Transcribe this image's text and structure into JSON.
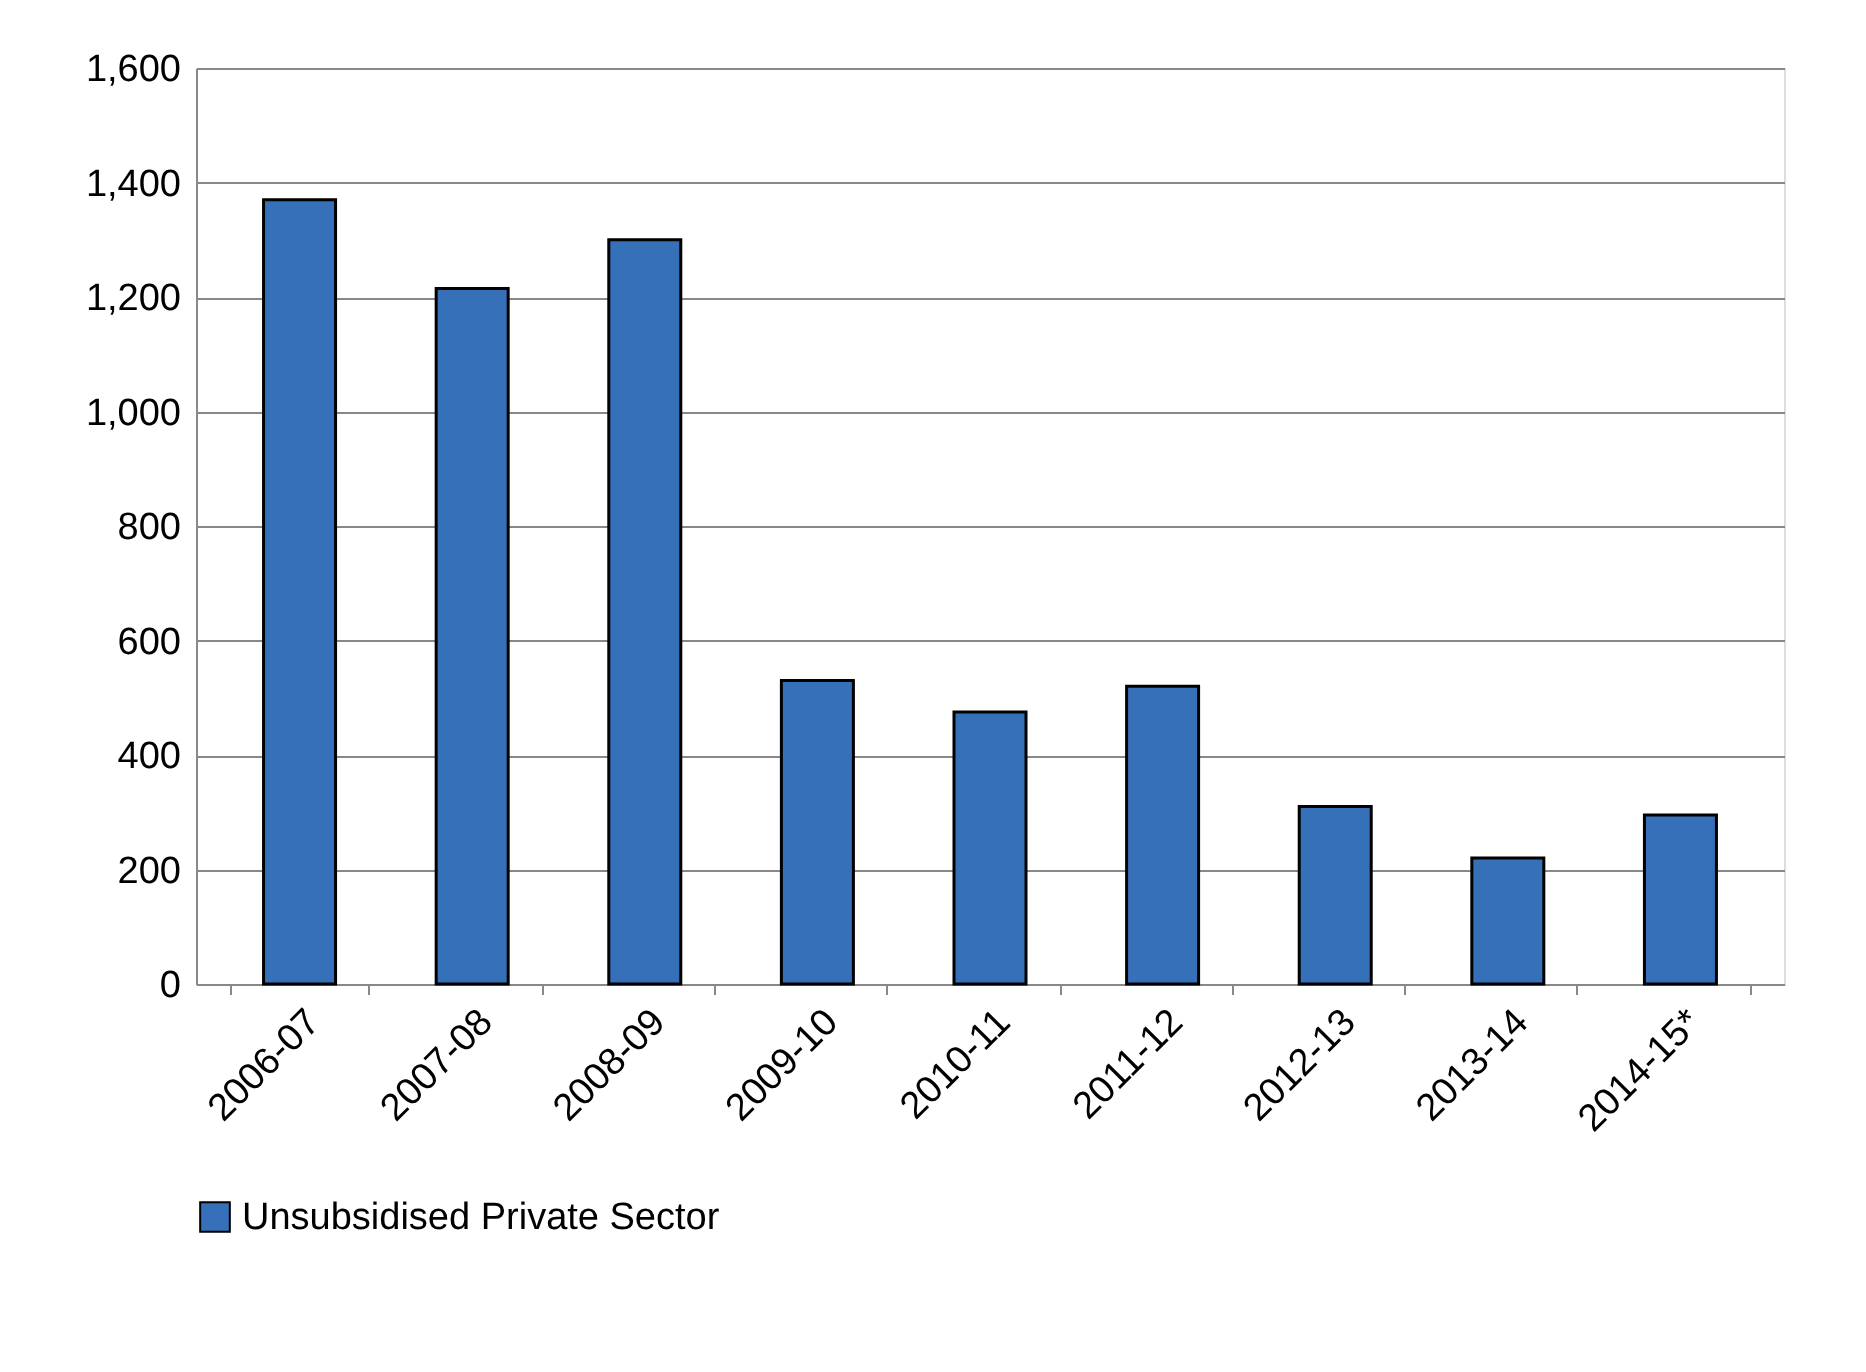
{
  "chart_data": {
    "type": "bar",
    "categories": [
      "2006-07",
      "2007-08",
      "2008-09",
      "2009-10",
      "2010-11",
      "2011-12",
      "2012-13",
      "2013-14",
      "2014-15*"
    ],
    "series": [
      {
        "name": "Unsubsidised Private Sector",
        "color": "#3670b8",
        "values": [
          1370,
          1215,
          1300,
          530,
          475,
          520,
          310,
          220,
          295
        ]
      }
    ],
    "ylim": [
      0,
      1600
    ],
    "yticks": [
      0,
      200,
      400,
      600,
      800,
      {
        "value": 1000,
        "label": "1,000"
      },
      {
        "value": 1200,
        "label": "1,200"
      },
      {
        "value": 1400,
        "label": "1,400"
      },
      {
        "value": 1600,
        "label": "1,600"
      }
    ],
    "grid": "y",
    "legend": "bottom"
  }
}
